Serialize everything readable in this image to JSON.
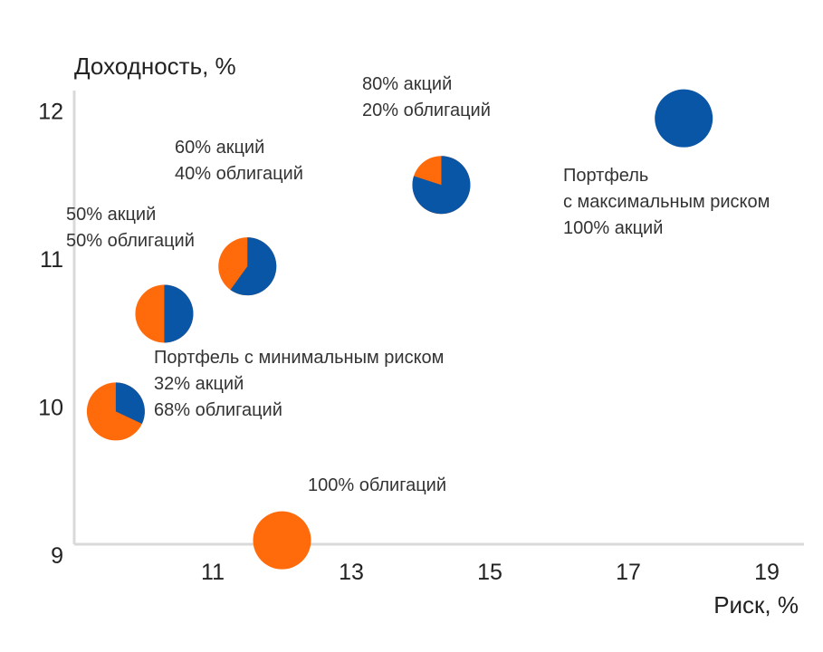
{
  "chart_data": {
    "type": "scatter",
    "subtype": "pie-markers",
    "xlabel": "Риск, %",
    "ylabel": "Доходность, %",
    "x_ticks": [
      11,
      13,
      15,
      17,
      19
    ],
    "y_ticks": [
      9,
      10,
      11,
      12
    ],
    "xlim": [
      9,
      19.5
    ],
    "ylim": [
      9,
      12
    ],
    "grid": false,
    "colors": {
      "stocks": "#0a56a6",
      "bonds": "#ff6a0a",
      "axis": "#d9d9d9",
      "text": "#222222"
    },
    "points": [
      {
        "name": "100% облигаций",
        "risk": 12.0,
        "return": 9.1,
        "stocks_pct": 0,
        "bonds_pct": 100,
        "label": [
          "100% облигаций"
        ]
      },
      {
        "name": "Портфель с минимальным риском",
        "risk": 9.6,
        "return": 9.97,
        "stocks_pct": 32,
        "bonds_pct": 68,
        "label": [
          "Портфель с минимальным риском",
          "32% акций",
          "68% облигаций"
        ]
      },
      {
        "name": "50/50",
        "risk": 10.3,
        "return": 10.63,
        "stocks_pct": 50,
        "bonds_pct": 50,
        "label": [
          "50% акций",
          "50% облигаций"
        ]
      },
      {
        "name": "60/40",
        "risk": 11.5,
        "return": 10.95,
        "stocks_pct": 60,
        "bonds_pct": 40,
        "label": [
          "60% акций",
          "40% облигаций"
        ]
      },
      {
        "name": "80/20",
        "risk": 14.3,
        "return": 11.5,
        "stocks_pct": 80,
        "bonds_pct": 20,
        "label": [
          "80% акций",
          "20% облигаций"
        ]
      },
      {
        "name": "Портфель с максимальным риском",
        "risk": 17.8,
        "return": 11.95,
        "stocks_pct": 100,
        "bonds_pct": 0,
        "label": [
          "Портфель",
          "с максимальным риском",
          "100% акций"
        ]
      }
    ]
  }
}
